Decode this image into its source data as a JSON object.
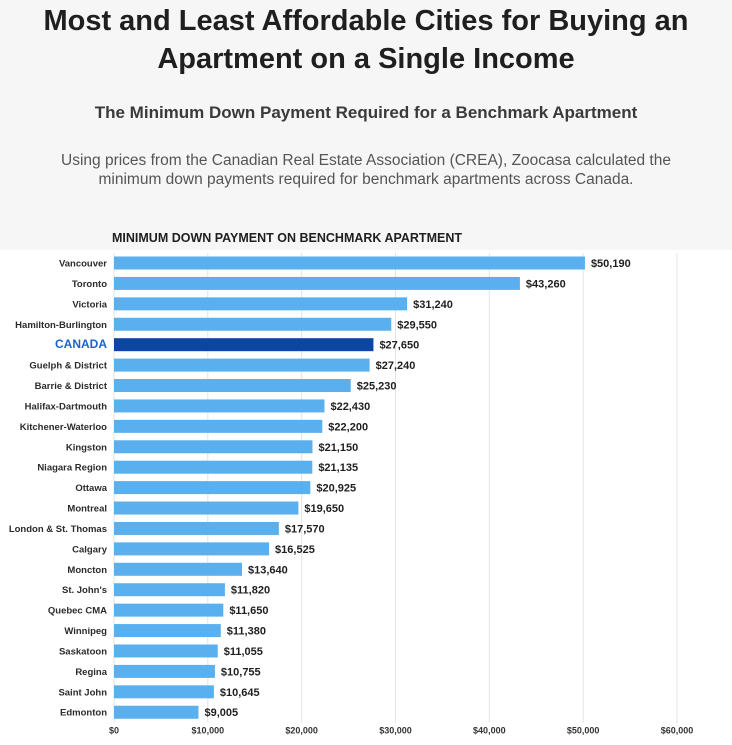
{
  "header": {
    "title_line1": "Most and Least Affordable Cities for Buying an",
    "title_line2": "Apartment on a Single Income",
    "subtitle": "The Minimum Down Payment Required for a Benchmark Apartment",
    "desc_line1": "Using prices from the Canadian Real Estate Association (CREA), Zoocasa calculated the",
    "desc_line2": "minimum down payments required for benchmark apartments across Canada."
  },
  "colors": {
    "bar": "#5ab0ee",
    "highlight_bar": "#0b46a4",
    "highlight_label": "#1a64c8"
  },
  "chart_data": {
    "type": "bar",
    "orientation": "horizontal",
    "title": "MINIMUM DOWN PAYMENT ON BENCHMARK APARTMENT",
    "xlabel": "",
    "ylabel": "",
    "xlim": [
      0,
      60000
    ],
    "grid": true,
    "highlight": "CANADA",
    "x_ticks": [
      {
        "value": 0,
        "label": "$0"
      },
      {
        "value": 10000,
        "label": "$10,000"
      },
      {
        "value": 20000,
        "label": "$20,000"
      },
      {
        "value": 30000,
        "label": "$30,000"
      },
      {
        "value": 40000,
        "label": "$40,000"
      },
      {
        "value": 50000,
        "label": "$50,000"
      },
      {
        "value": 60000,
        "label": "$60,000"
      }
    ],
    "categories": [
      "Vancouver",
      "Toronto",
      "Victoria",
      "Hamilton-Burlington",
      "CANADA",
      "Guelph & District",
      "Barrie & District",
      "Halifax-Dartmouth",
      "Kitchener-Waterloo",
      "Kingston",
      "Niagara Region",
      "Ottawa",
      "Montreal",
      "London & St. Thomas",
      "Calgary",
      "Moncton",
      "St. John's",
      "Quebec CMA",
      "Winnipeg",
      "Saskatoon",
      "Regina",
      "Saint John",
      "Edmonton"
    ],
    "values": [
      50190,
      43260,
      31240,
      29550,
      27650,
      27240,
      25230,
      22430,
      22200,
      21150,
      21135,
      20925,
      19650,
      17570,
      16525,
      13640,
      11820,
      11650,
      11380,
      11055,
      10755,
      10645,
      9005
    ],
    "value_labels": [
      "$50,190",
      "$43,260",
      "$31,240",
      "$29,550",
      "$27,650",
      "$27,240",
      "$25,230",
      "$22,430",
      "$22,200",
      "$21,150",
      "$21,135",
      "$20,925",
      "$19,650",
      "$17,570",
      "$16,525",
      "$13,640",
      "$11,820",
      "$11,650",
      "$11,380",
      "$11,055",
      "$10,755",
      "$10,645",
      "$9,005"
    ]
  }
}
